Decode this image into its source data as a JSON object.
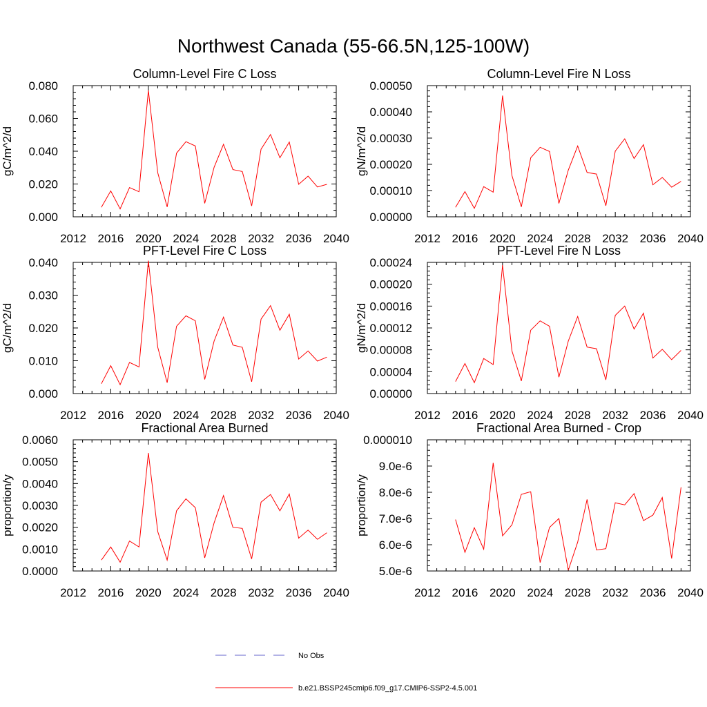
{
  "figure": {
    "title": "Northwest Canada (55-66.5N,125-100W)"
  },
  "legend": {
    "position": "bottom-center",
    "entries": [
      {
        "label": "No Obs",
        "color": "#6666cc",
        "style": "dashed"
      },
      {
        "label": "b.e21.BSSP245cmip6.f09_g17.CMIP6-SSP2-4.5.001",
        "color": "#ff0000",
        "style": "solid"
      }
    ]
  },
  "chart_data": [
    {
      "type": "line",
      "title": "Column-Level Fire C Loss",
      "ylabel": "gC/m^2/d",
      "xlabel": "",
      "xlim": [
        2012,
        2040
      ],
      "ylim": [
        0,
        0.08
      ],
      "xticks": [
        "2012",
        "2016",
        "2020",
        "2024",
        "2028",
        "2032",
        "2036",
        "2040"
      ],
      "yticks": [
        "0.000",
        "0.020",
        "0.040",
        "0.060",
        "0.080"
      ],
      "x": [
        2015,
        2016,
        2017,
        2018,
        2019,
        2020,
        2021,
        2022,
        2023,
        2024,
        2025,
        2026,
        2027,
        2028,
        2029,
        2030,
        2031,
        2032,
        2033,
        2034,
        2035,
        2036,
        2037,
        2038,
        2039
      ],
      "series": [
        {
          "name": "b.e21.BSSP245cmip6.f09_g17.CMIP6-SSP2-4.5.001",
          "color": "#ff0000",
          "values": [
            0.0058,
            0.0158,
            0.0048,
            0.0178,
            0.0153,
            0.077,
            0.0268,
            0.006,
            0.0388,
            0.0458,
            0.0432,
            0.0082,
            0.0302,
            0.0442,
            0.0288,
            0.0276,
            0.0066,
            0.0412,
            0.0502,
            0.036,
            0.0456,
            0.0198,
            0.0248,
            0.0182,
            0.0198
          ]
        }
      ]
    },
    {
      "type": "line",
      "title": "Column-Level Fire N Loss",
      "ylabel": "gN/m^2/d",
      "xlabel": "",
      "xlim": [
        2012,
        2040
      ],
      "ylim": [
        0,
        0.0005
      ],
      "xticks": [
        "2012",
        "2016",
        "2020",
        "2024",
        "2028",
        "2032",
        "2036",
        "2040"
      ],
      "yticks": [
        "0.00000",
        "0.00010",
        "0.00020",
        "0.00030",
        "0.00040",
        "0.00050"
      ],
      "x": [
        2015,
        2016,
        2017,
        2018,
        2019,
        2020,
        2021,
        2022,
        2023,
        2024,
        2025,
        2026,
        2027,
        2028,
        2029,
        2030,
        2031,
        2032,
        2033,
        2034,
        2035,
        2036,
        2037,
        2038,
        2039
      ],
      "series": [
        {
          "name": "b.e21.BSSP245cmip6.f09_g17.CMIP6-SSP2-4.5.001",
          "color": "#ff0000",
          "values": [
            3.6e-05,
            9.6e-05,
            3.2e-05,
            0.000115,
            9.4e-05,
            0.000462,
            0.000157,
            3.8e-05,
            0.000225,
            0.000265,
            0.000249,
            5.1e-05,
            0.000178,
            0.00027,
            0.000169,
            0.000163,
            4.2e-05,
            0.00025,
            0.000297,
            0.000222,
            0.000275,
            0.000122,
            0.00015,
            0.000113,
            0.000135
          ]
        }
      ]
    },
    {
      "type": "line",
      "title": "PFT-Level Fire C Loss",
      "ylabel": "gC/m^2/d",
      "xlabel": "",
      "xlim": [
        2012,
        2040
      ],
      "ylim": [
        0,
        0.04
      ],
      "xticks": [
        "2012",
        "2016",
        "2020",
        "2024",
        "2028",
        "2032",
        "2036",
        "2040"
      ],
      "yticks": [
        "0.000",
        "0.010",
        "0.020",
        "0.030",
        "0.040"
      ],
      "x": [
        2015,
        2016,
        2017,
        2018,
        2019,
        2020,
        2021,
        2022,
        2023,
        2024,
        2025,
        2026,
        2027,
        2028,
        2029,
        2030,
        2031,
        2032,
        2033,
        2034,
        2035,
        2036,
        2037,
        2038,
        2039
      ],
      "series": [
        {
          "name": "b.e21.BSSP245cmip6.f09_g17.CMIP6-SSP2-4.5.001",
          "color": "#ff0000",
          "values": [
            0.003,
            0.0085,
            0.0027,
            0.0095,
            0.0081,
            0.0405,
            0.0141,
            0.0033,
            0.0205,
            0.0237,
            0.0222,
            0.0043,
            0.016,
            0.0233,
            0.0148,
            0.0141,
            0.0036,
            0.0227,
            0.0268,
            0.0193,
            0.0242,
            0.0105,
            0.013,
            0.0099,
            0.0111
          ]
        }
      ]
    },
    {
      "type": "line",
      "title": "PFT-Level Fire N Loss",
      "ylabel": "gN/m^2/d",
      "xlabel": "",
      "xlim": [
        2012,
        2040
      ],
      "ylim": [
        0,
        0.00024
      ],
      "xticks": [
        "2012",
        "2016",
        "2020",
        "2024",
        "2028",
        "2032",
        "2036",
        "2040"
      ],
      "yticks": [
        "0.00000",
        "0.00004",
        "0.00008",
        "0.00012",
        "0.00016",
        "0.00020",
        "0.00024"
      ],
      "x": [
        2015,
        2016,
        2017,
        2018,
        2019,
        2020,
        2021,
        2022,
        2023,
        2024,
        2025,
        2026,
        2027,
        2028,
        2029,
        2030,
        2031,
        2032,
        2033,
        2034,
        2035,
        2036,
        2037,
        2038,
        2039
      ],
      "series": [
        {
          "name": "b.e21.BSSP245cmip6.f09_g17.CMIP6-SSP2-4.5.001",
          "color": "#ff0000",
          "values": [
            2.2e-05,
            5.5e-05,
            2e-05,
            6.4e-05,
            5.3e-05,
            0.000235,
            7.8e-05,
            2.3e-05,
            0.000116,
            0.000133,
            0.000123,
            3e-05,
            9.6e-05,
            0.000141,
            8.5e-05,
            8.2e-05,
            2.5e-05,
            0.000143,
            0.00016,
            0.000118,
            0.000147,
            6.5e-05,
            8.1e-05,
            6.2e-05,
            7.9e-05
          ]
        }
      ]
    },
    {
      "type": "line",
      "title": "Fractional Area Burned",
      "ylabel": "proportion/y",
      "xlabel": "",
      "xlim": [
        2012,
        2040
      ],
      "ylim": [
        0,
        0.006
      ],
      "xticks": [
        "2012",
        "2016",
        "2020",
        "2024",
        "2028",
        "2032",
        "2036",
        "2040"
      ],
      "yticks": [
        "0.0000",
        "0.0010",
        "0.0020",
        "0.0030",
        "0.0040",
        "0.0050",
        "0.0060"
      ],
      "x": [
        2015,
        2016,
        2017,
        2018,
        2019,
        2020,
        2021,
        2022,
        2023,
        2024,
        2025,
        2026,
        2027,
        2028,
        2029,
        2030,
        2031,
        2032,
        2033,
        2034,
        2035,
        2036,
        2037,
        2038,
        2039
      ],
      "series": [
        {
          "name": "b.e21.BSSP245cmip6.f09_g17.CMIP6-SSP2-4.5.001",
          "color": "#ff0000",
          "values": [
            0.0005,
            0.0011,
            0.0004,
            0.00137,
            0.0011,
            0.0054,
            0.0018,
            0.0005,
            0.00275,
            0.0033,
            0.0029,
            0.0006,
            0.0022,
            0.00345,
            0.002,
            0.00195,
            0.00055,
            0.00315,
            0.0035,
            0.00275,
            0.00352,
            0.0015,
            0.00187,
            0.00145,
            0.00175
          ]
        }
      ]
    },
    {
      "type": "line",
      "title": "Fractional Area Burned - Crop",
      "ylabel": "proportion/y",
      "xlabel": "",
      "xlim": [
        2012,
        2040
      ],
      "ylim": [
        5e-06,
        1e-05
      ],
      "xticks": [
        "2012",
        "2016",
        "2020",
        "2024",
        "2028",
        "2032",
        "2036",
        "2040"
      ],
      "yticks": [
        "5.0e-6",
        "6.0e-6",
        "7.0e-6",
        "8.0e-6",
        "9.0e-6",
        "0.000010"
      ],
      "x": [
        2015,
        2016,
        2017,
        2018,
        2019,
        2020,
        2021,
        2022,
        2023,
        2024,
        2025,
        2026,
        2027,
        2028,
        2029,
        2030,
        2031,
        2032,
        2033,
        2034,
        2035,
        2036,
        2037,
        2038,
        2039
      ],
      "series": [
        {
          "name": "b.e21.BSSP245cmip6.f09_g17.CMIP6-SSP2-4.5.001",
          "color": "#ff0000",
          "values": [
            6.96e-06,
            5.71e-06,
            6.65e-06,
            5.83e-06,
            9.12e-06,
            6.34e-06,
            6.76e-06,
            7.92e-06,
            8.02e-06,
            5.32e-06,
            6.66e-06,
            7e-06,
            5.03e-06,
            6.1e-06,
            7.73e-06,
            5.8e-06,
            5.85e-06,
            7.6e-06,
            7.52e-06,
            7.95e-06,
            6.92e-06,
            7.13e-06,
            7.8e-06,
            5.48e-06,
            8.19e-06
          ]
        }
      ]
    }
  ]
}
